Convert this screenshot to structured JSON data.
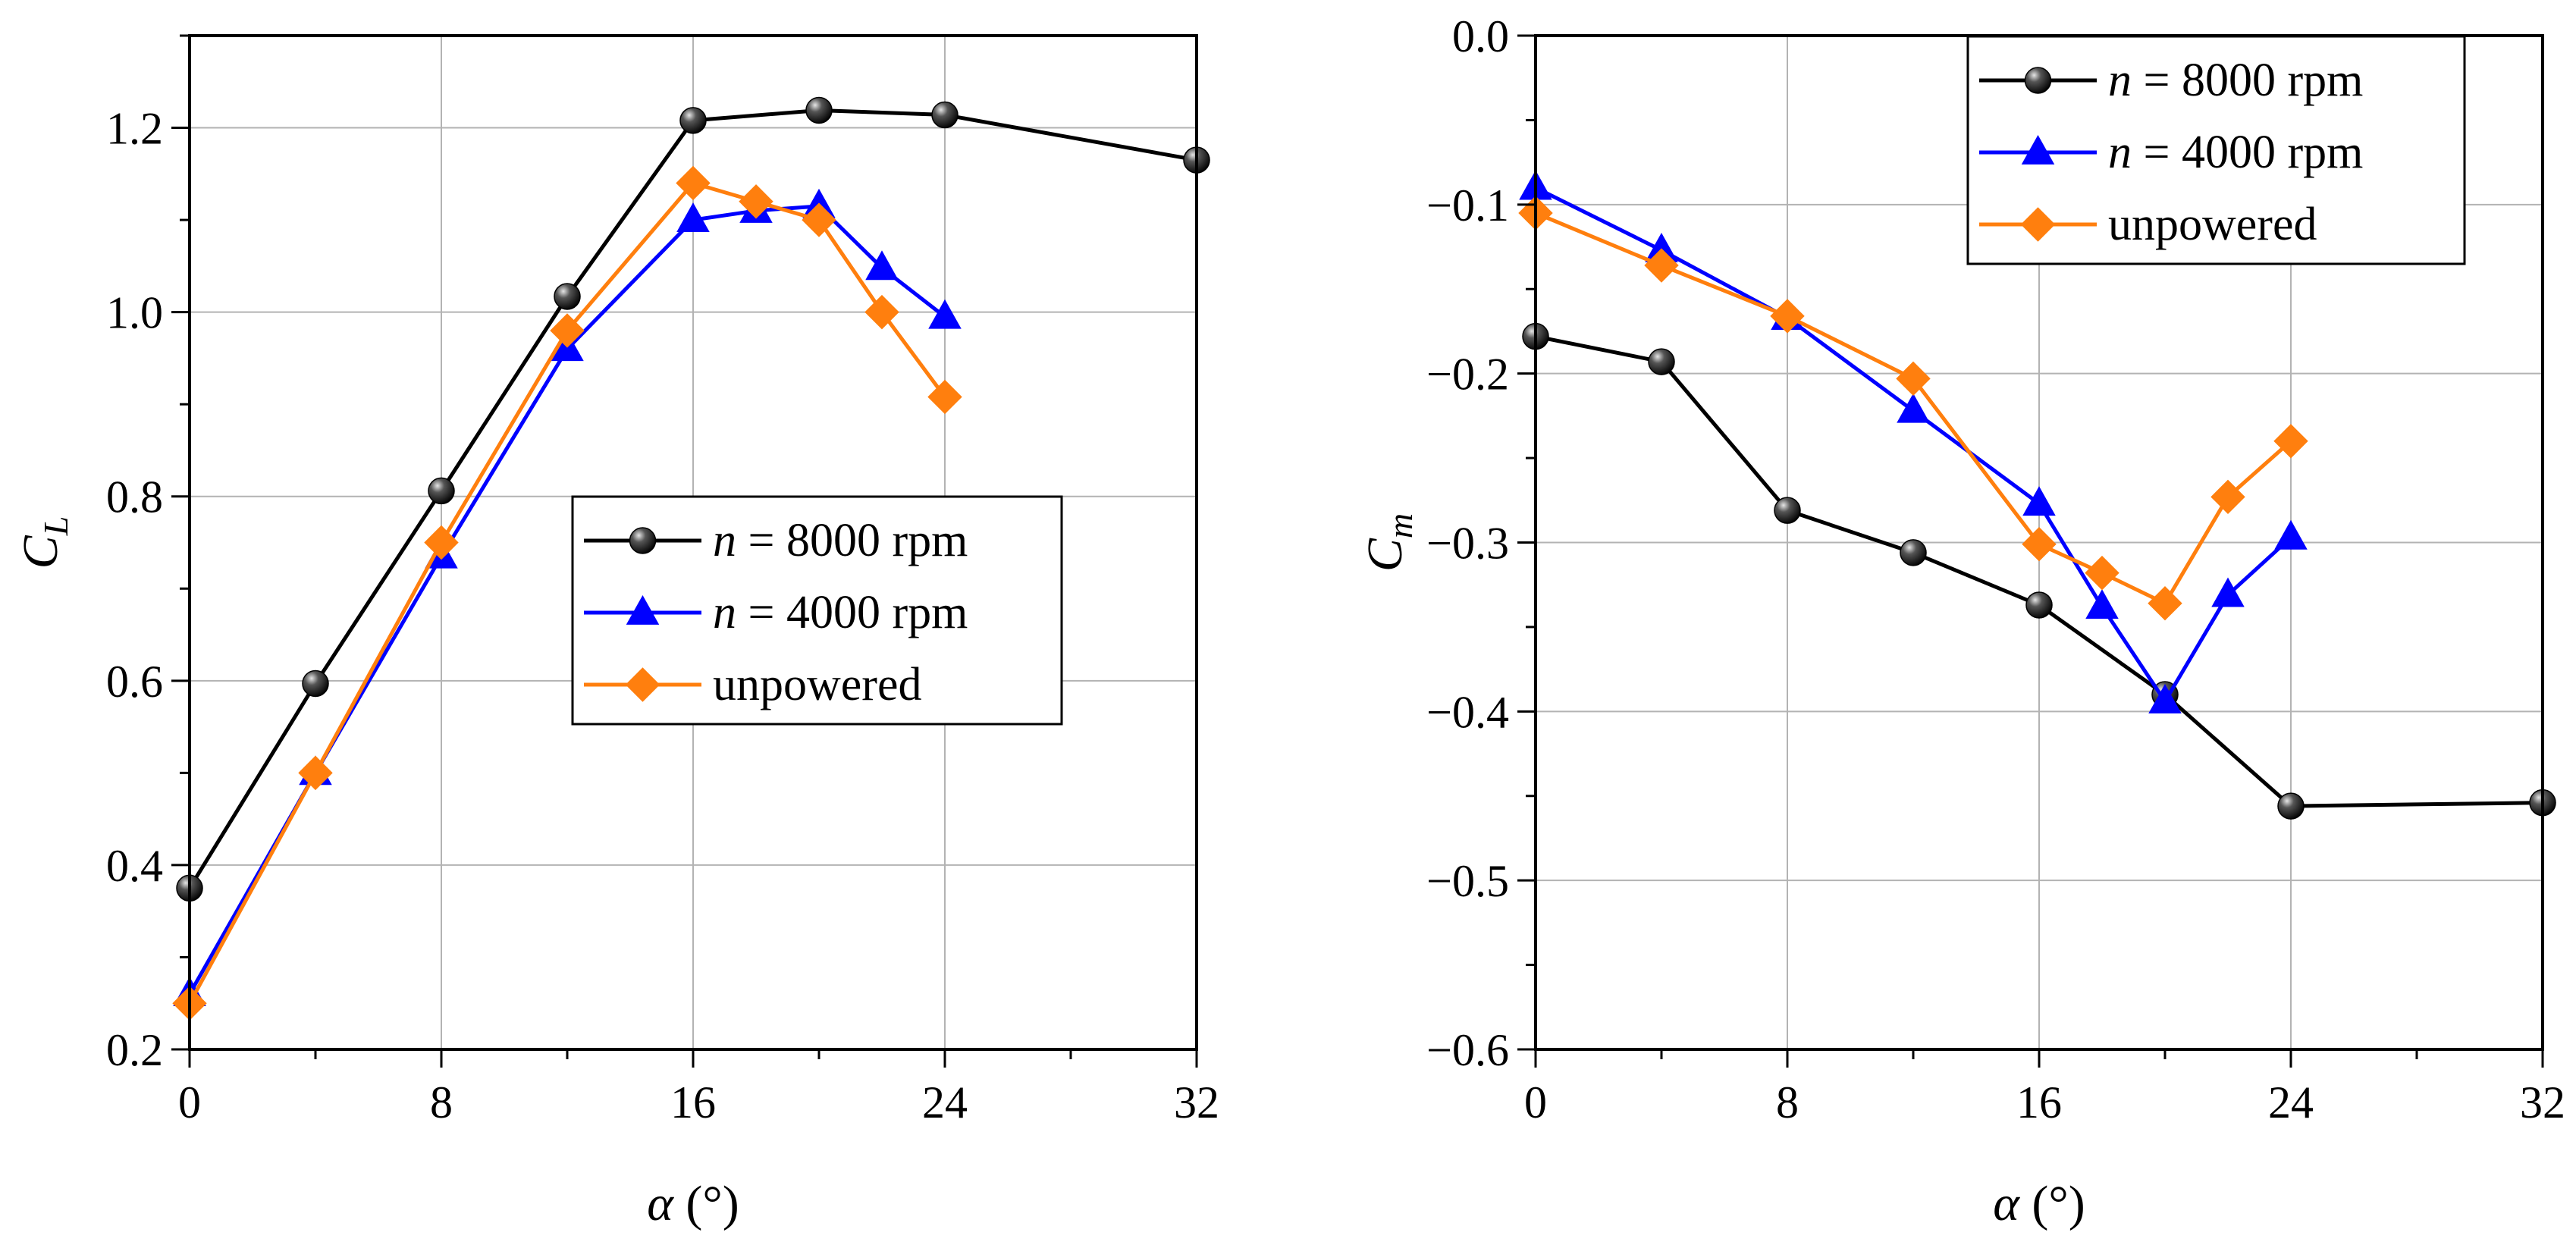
{
  "chart_data": [
    {
      "type": "line",
      "xlabel": "α (°)",
      "ylabel": "C",
      "ylabel_sub": "L",
      "xlim": [
        0,
        32
      ],
      "ylim": [
        0.2,
        1.3
      ],
      "xticks": [
        "0",
        "8",
        "16",
        "24",
        "32"
      ],
      "yticks": [
        "0.2",
        "0.4",
        "0.6",
        "0.8",
        "1.0",
        "1.2"
      ],
      "grid": true,
      "legend_position": "center-right",
      "series": [
        {
          "name_prefix": "n",
          "name_rest": " = 8000 rpm",
          "color": "#000000",
          "marker": "sphere",
          "x": [
            0,
            4,
            8,
            12,
            16,
            20,
            24,
            32
          ],
          "y": [
            0.375,
            0.597,
            0.806,
            1.017,
            1.208,
            1.219,
            1.214,
            1.165
          ]
        },
        {
          "name_prefix": "n",
          "name_rest": " = 4000 rpm",
          "color": "#0000ff",
          "marker": "triangle",
          "x": [
            0,
            4,
            8,
            12,
            16,
            18,
            20,
            22,
            24
          ],
          "y": [
            0.26,
            0.5,
            0.735,
            0.96,
            1.1,
            1.11,
            1.115,
            1.048,
            0.995
          ]
        },
        {
          "name_prefix": "",
          "name_rest": "unpowered",
          "color": "#ff7f0e",
          "marker": "diamond",
          "x": [
            0,
            4,
            8,
            12,
            16,
            18,
            20,
            22,
            24
          ],
          "y": [
            0.25,
            0.5,
            0.75,
            0.98,
            1.14,
            1.12,
            1.1,
            1.0,
            0.908
          ]
        }
      ]
    },
    {
      "type": "line",
      "xlabel": "α (°)",
      "ylabel": "C",
      "ylabel_sub": "m",
      "xlim": [
        0,
        32
      ],
      "ylim": [
        -0.6,
        0.0
      ],
      "xticks": [
        "0",
        "8",
        "16",
        "24",
        "32"
      ],
      "yticks": [
        "−0.6",
        "−0.5",
        "−0.4",
        "−0.3",
        "−0.2",
        "−0.1",
        "0.0"
      ],
      "grid": true,
      "legend_position": "top-right",
      "series": [
        {
          "name_prefix": "n",
          "name_rest": " = 8000 rpm",
          "color": "#000000",
          "marker": "sphere",
          "x": [
            0,
            4,
            8,
            12,
            16,
            20,
            24,
            32
          ],
          "y": [
            -0.178,
            -0.193,
            -0.281,
            -0.306,
            -0.337,
            -0.39,
            -0.456,
            -0.454
          ]
        },
        {
          "name_prefix": "n",
          "name_rest": " = 4000 rpm",
          "color": "#0000ff",
          "marker": "triangle",
          "x": [
            0,
            4,
            8,
            12,
            16,
            18,
            20,
            22,
            24
          ],
          "y": [
            -0.09,
            -0.127,
            -0.167,
            -0.222,
            -0.277,
            -0.338,
            -0.394,
            -0.331,
            -0.297
          ]
        },
        {
          "name_prefix": "",
          "name_rest": "unpowered",
          "color": "#ff7f0e",
          "marker": "diamond",
          "x": [
            0,
            4,
            8,
            12,
            16,
            18,
            20,
            22,
            24
          ],
          "y": [
            -0.105,
            -0.136,
            -0.166,
            -0.203,
            -0.301,
            -0.318,
            -0.336,
            -0.273,
            -0.24
          ]
        }
      ]
    }
  ]
}
